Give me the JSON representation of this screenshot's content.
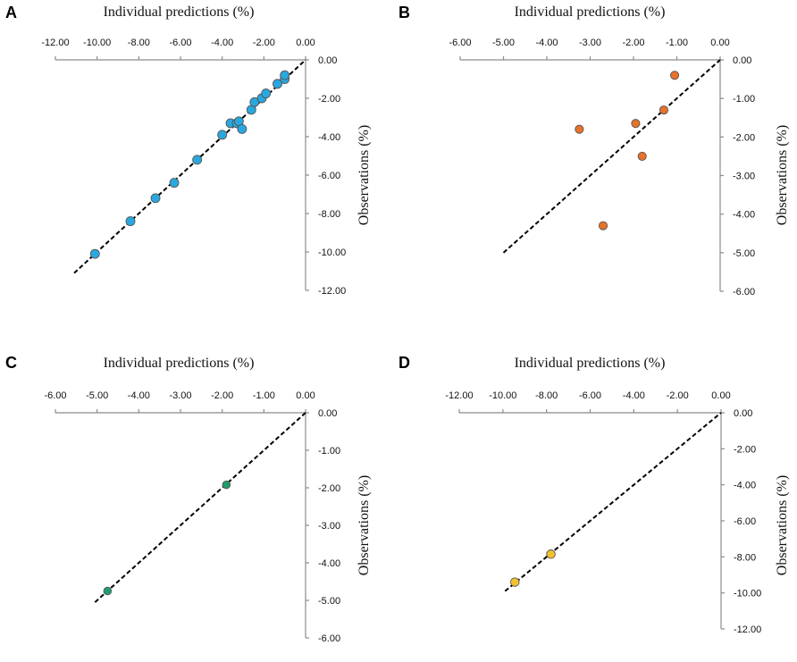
{
  "chart_data": [
    {
      "panel": "A",
      "type": "scatter",
      "title": "Individual predictions (%)",
      "xlabel": "Individual predictions (%)",
      "ylabel": "Observations (%)",
      "xlim": [
        -12,
        0
      ],
      "ylim": [
        -12,
        0
      ],
      "x_ticks": [
        -12,
        -10,
        -8,
        -6,
        -4,
        -2,
        0
      ],
      "y_ticks": [
        0,
        -2,
        -4,
        -6,
        -8,
        -10,
        -12
      ],
      "x_tick_labels": [
        "-12.00",
        "-10.00",
        "-8.00",
        "-6.00",
        "-4.00",
        "-2.00",
        "0.00"
      ],
      "y_tick_labels": [
        "0.00",
        "-2.00",
        "-4.00",
        "-6.00",
        "-8.00",
        "-10.00",
        "-12.00"
      ],
      "reference_line": {
        "from": [
          -11.1,
          -11.1
        ],
        "to": [
          0,
          0
        ]
      },
      "point_color": "#29a8e0",
      "points": [
        {
          "x": -10.1,
          "y": -10.1
        },
        {
          "x": -8.4,
          "y": -8.4
        },
        {
          "x": -7.2,
          "y": -7.2
        },
        {
          "x": -6.3,
          "y": -6.4
        },
        {
          "x": -5.2,
          "y": -5.2
        },
        {
          "x": -4.0,
          "y": -3.9
        },
        {
          "x": -3.6,
          "y": -3.3
        },
        {
          "x": -3.3,
          "y": -3.3
        },
        {
          "x": -3.2,
          "y": -3.2
        },
        {
          "x": -3.05,
          "y": -3.6
        },
        {
          "x": -2.6,
          "y": -2.6
        },
        {
          "x": -2.45,
          "y": -2.2
        },
        {
          "x": -2.1,
          "y": -2.0
        },
        {
          "x": -1.9,
          "y": -1.75
        },
        {
          "x": -1.35,
          "y": -1.25
        },
        {
          "x": -1.0,
          "y": -1.0
        },
        {
          "x": -1.0,
          "y": -0.8
        }
      ]
    },
    {
      "panel": "B",
      "type": "scatter",
      "title": "Individual predictions (%)",
      "xlabel": "Individual predictions (%)",
      "ylabel": "Observations (%)",
      "xlim": [
        -6,
        0
      ],
      "ylim": [
        -6,
        0
      ],
      "x_ticks": [
        -6,
        -5,
        -4,
        -3,
        -2,
        -1,
        0
      ],
      "y_ticks": [
        0,
        -1,
        -2,
        -3,
        -4,
        -5,
        -6
      ],
      "x_tick_labels": [
        "-6.00",
        "-5.00",
        "-4.00",
        "-3.00",
        "-2.00",
        "-1.00",
        "0.00"
      ],
      "y_tick_labels": [
        "0.00",
        "-1.00",
        "-2.00",
        "-3.00",
        "-4.00",
        "-5.00",
        "-6.00"
      ],
      "reference_line": {
        "from": [
          -5.0,
          -5.0
        ],
        "to": [
          0,
          0
        ]
      },
      "point_color": "#e8722a",
      "points": [
        {
          "x": -1.05,
          "y": -0.4
        },
        {
          "x": -1.3,
          "y": -1.3
        },
        {
          "x": -1.95,
          "y": -1.65
        },
        {
          "x": -3.25,
          "y": -1.8
        },
        {
          "x": -1.8,
          "y": -2.5
        },
        {
          "x": -2.7,
          "y": -4.3
        }
      ]
    },
    {
      "panel": "C",
      "type": "scatter",
      "title": "Individual predictions (%)",
      "xlabel": "Individual predictions (%)",
      "ylabel": "Observations (%)",
      "xlim": [
        -6,
        0
      ],
      "ylim": [
        -6,
        0
      ],
      "x_ticks": [
        -6,
        -5,
        -4,
        -3,
        -2,
        -1,
        0
      ],
      "y_ticks": [
        0,
        -1,
        -2,
        -3,
        -4,
        -5,
        -6
      ],
      "x_tick_labels": [
        "-6.00",
        "-5.00",
        "-4.00",
        "-3.00",
        "-2.00",
        "-1.00",
        "0.00"
      ],
      "y_tick_labels": [
        "0.00",
        "-1.00",
        "-2.00",
        "-3.00",
        "-4.00",
        "-5.00",
        "-6.00"
      ],
      "reference_line": {
        "from": [
          -5.05,
          -5.05
        ],
        "to": [
          0,
          0
        ]
      },
      "point_color": "#1f9e6e",
      "points": [
        {
          "x": -1.9,
          "y": -1.92
        },
        {
          "x": -4.75,
          "y": -4.75
        }
      ]
    },
    {
      "panel": "D",
      "type": "scatter",
      "title": "Individual predictions (%)",
      "xlabel": "Individual predictions (%)",
      "ylabel": "Observations (%)",
      "xlim": [
        -12,
        0
      ],
      "ylim": [
        -12,
        0
      ],
      "x_ticks": [
        -12,
        -10,
        -8,
        -6,
        -4,
        -2,
        0
      ],
      "y_ticks": [
        0,
        -2,
        -4,
        -6,
        -8,
        -10,
        -12
      ],
      "x_tick_labels": [
        "-12.00",
        "-10.00",
        "-8.00",
        "-6.00",
        "-4.00",
        "-2.00",
        "0.00"
      ],
      "y_tick_labels": [
        "0.00",
        "-2.00",
        "-4.00",
        "-6.00",
        "-8.00",
        "-10.00",
        "-12.00"
      ],
      "reference_line": {
        "from": [
          -9.9,
          -9.9
        ],
        "to": [
          0,
          0
        ]
      },
      "point_color": "#f2c12e",
      "points": [
        {
          "x": -7.8,
          "y": -7.85
        },
        {
          "x": -9.45,
          "y": -9.4
        }
      ]
    }
  ]
}
